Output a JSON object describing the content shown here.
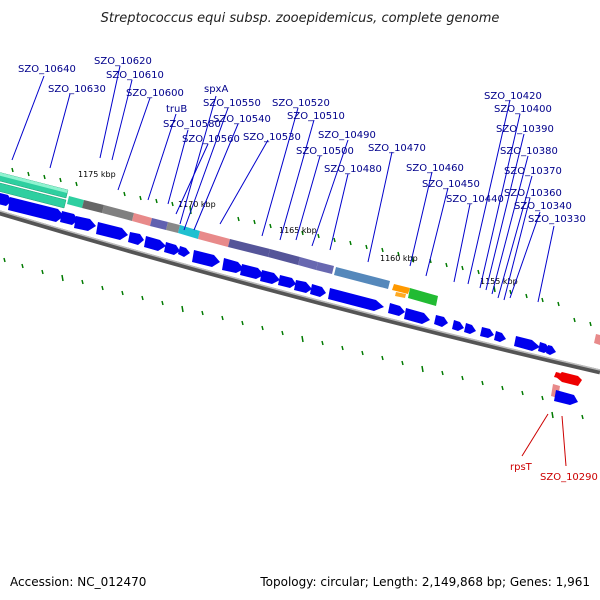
{
  "title": "Streptococcus equi subsp. zooepidemicus, complete genome",
  "accession": "Accession: NC_012470",
  "summary": "Topology: circular; Length: 2,149,868 bp; Genes: 1,961",
  "colors": {
    "forward_gene": "#0000ee",
    "reverse_gene": "#ee0000",
    "backbone": "#888888",
    "label_line": "#0000cc",
    "label_line_red": "#cc0000",
    "tick": "#007a00"
  },
  "scale_labels": [
    "1175 kbp",
    "1170 kbp",
    "1165 kbp",
    "1160 kbp",
    "1155 kbp"
  ],
  "gene_labels": [
    "SZO_10640",
    "SZO_10630",
    "SZO_10620",
    "SZO_10610",
    "SZO_10600",
    "truB",
    "spxA",
    "SZO_10580",
    "SZO_10550",
    "SZO_10540",
    "SZO_10560",
    "SZO_10520",
    "SZO_10510",
    "SZO_10530",
    "SZO_10490",
    "SZO_10500",
    "SZO_10480",
    "SZO_10470",
    "SZO_10460",
    "SZO_10450",
    "SZO_10440",
    "SZO_10420",
    "SZO_10400",
    "SZO_10390",
    "SZO_10380",
    "SZO_10370",
    "SZO_10360",
    "SZO_10340",
    "SZO_10330"
  ],
  "red_labels": [
    "rpsT",
    "SZO_10290"
  ]
}
